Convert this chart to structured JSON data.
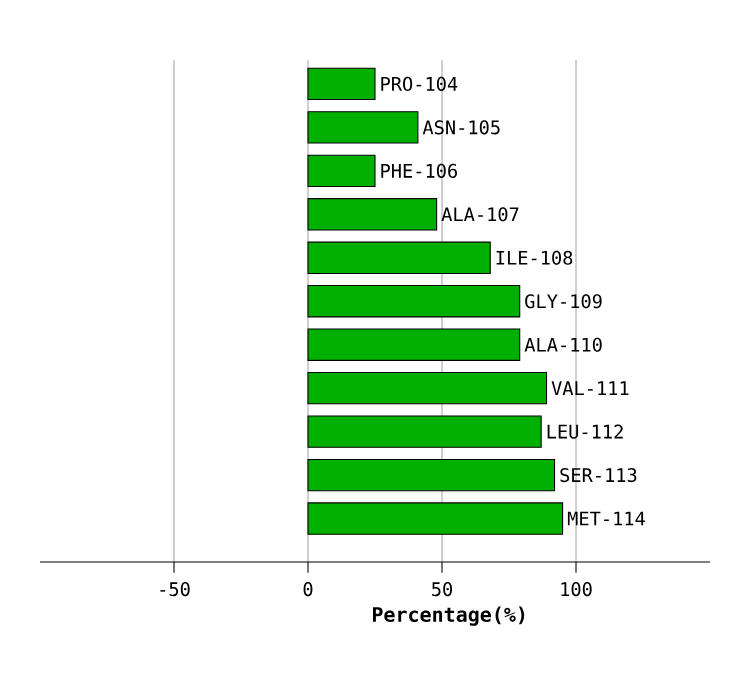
{
  "chart_data": {
    "type": "bar",
    "orientation": "horizontal",
    "xlabel": "Percentage(%)",
    "categories": [
      "PRO-104",
      "ASN-105",
      "PHE-106",
      "ALA-107",
      "ILE-108",
      "GLY-109",
      "ALA-110",
      "VAL-111",
      "LEU-112",
      "SER-113",
      "MET-114"
    ],
    "values": [
      25,
      41,
      25,
      48,
      68,
      79,
      79,
      89,
      87,
      92,
      95
    ],
    "color": "#00b000",
    "xlim": [
      -100,
      150
    ],
    "xticks": [
      -50,
      0,
      50,
      100
    ],
    "grid": "x"
  }
}
